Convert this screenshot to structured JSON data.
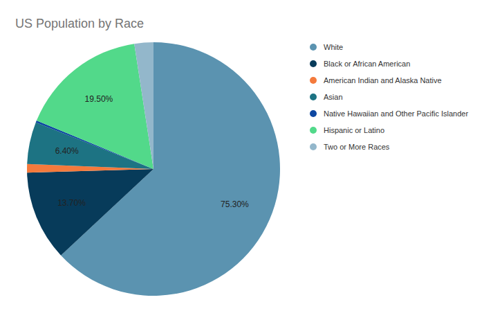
{
  "chart_data": {
    "type": "pie",
    "title": "US Population by Race",
    "categories": [
      "White",
      "Black or African American",
      "American Indian and Alaska Native",
      "Asian",
      "Native Hawaiian and Other Pacific Islander",
      "Hispanic or Latino",
      "Two or More Races"
    ],
    "values": [
      75.3,
      13.7,
      1.3,
      6.4,
      0.3,
      19.5,
      2.9
    ],
    "value_labels": [
      "75.30%",
      "13.70%",
      null,
      "6.40%",
      null,
      "19.50%",
      null
    ],
    "colors": [
      "#5b93b0",
      "#073b5a",
      "#f47a3c",
      "#1d7383",
      "#0d47a1",
      "#52d98a",
      "#93b7cb"
    ],
    "data_labels": true,
    "legend": "right"
  }
}
